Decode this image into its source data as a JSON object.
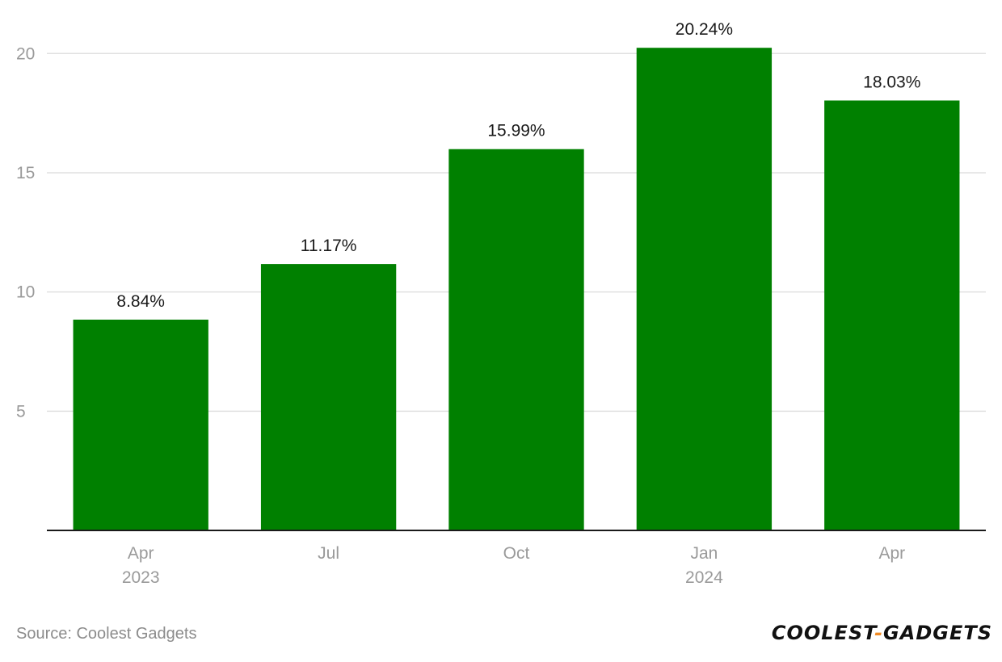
{
  "chart_data": {
    "type": "bar",
    "categories": [
      "Apr",
      "Jul",
      "Oct",
      "Jan",
      "Apr"
    ],
    "category_sublabels": [
      "2023",
      "",
      "",
      "2024",
      ""
    ],
    "values": [
      8.84,
      11.17,
      15.99,
      20.24,
      18.03
    ],
    "data_labels": [
      "8.84%",
      "11.17%",
      "15.99%",
      "20.24%",
      "18.03%"
    ],
    "yticks": [
      5,
      10,
      15,
      20
    ],
    "ylim": [
      0,
      21.5
    ],
    "grid": true,
    "bar_color": "#008000",
    "gridline_color": "#e0e0e0",
    "axis_color": "#1a1a1a"
  },
  "footer": {
    "source": "Source: Coolest Gadgets",
    "logo_text_left": "COOLEST",
    "logo_dash": "-",
    "logo_text_right": "GADGETS"
  }
}
